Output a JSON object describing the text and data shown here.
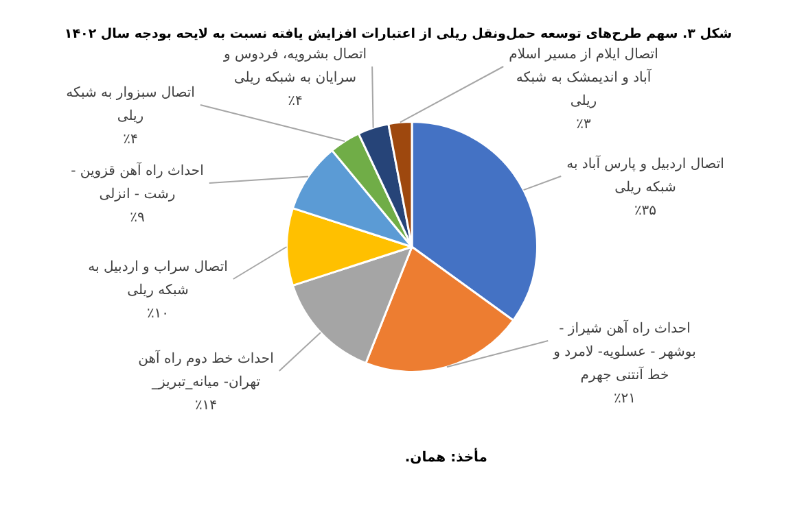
{
  "chart_data": {
    "type": "pie",
    "title": "شکل ۳. سهم طرح‌های توسعه حمل‌ونقل ریلی از اعتبارات افزایش یافته نسبت به لایحه بودجه سال ۱۴۰۲",
    "categories": [
      "اتصال اردبیل و پارس آباد به شبکه ریلی",
      "احداث راه آهن شیراز - بوشهر - عسلویه- لامرد و خط آنتنی جهرم",
      "احداث خط دوم راه آهن تهران- میانه_تبریز_",
      "اتصال سراب و اردبیل به شبکه ریلی",
      "احداث راه آهن قزوین - رشت - انزلی",
      "اتصال سبزوار به شبکه ریلی",
      "اتصال بشرویه، فردوس و سرایان به شبکه ریلی",
      "اتصال ایلام از مسیر اسلام آباد و اندیمشک به شبکه ریلی"
    ],
    "values": [
      35,
      21,
      14,
      10,
      9,
      4,
      4,
      3
    ],
    "value_labels": [
      "٪۳۵",
      "٪۲۱",
      "٪۱۴",
      "٪۱۰",
      "٪۹",
      "٪۴",
      "٪۴",
      "٪۳"
    ],
    "colors": [
      "#4472c4",
      "#ed7d31",
      "#a5a5a5",
      "#ffc000",
      "#5b9bd5",
      "#70ad47",
      "#264478",
      "#9e480e"
    ],
    "annotations": [
      "مأخذ: همان."
    ]
  }
}
